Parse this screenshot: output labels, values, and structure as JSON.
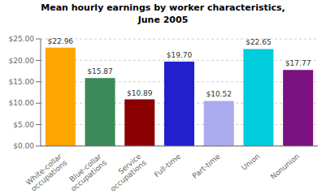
{
  "chart_data": {
    "type": "bar",
    "title": "Mean hourly earnings by worker characteristics,\nJune 2005",
    "categories": [
      "White-collar\noccupations",
      "Blue-collar\noccupations",
      "Service\noccupations",
      "Full-time",
      "Part-time",
      "Union",
      "Nonunion"
    ],
    "values": [
      22.96,
      15.87,
      10.89,
      19.7,
      10.52,
      22.65,
      17.77
    ],
    "value_labels": [
      "$22.96",
      "$15.87",
      "$10.89",
      "$19.70",
      "$10.52",
      "$22.65",
      "$17.77"
    ],
    "data_labels": true,
    "colors": [
      "#FFA500",
      "#3A8A5A",
      "#8B0000",
      "#2020CC",
      "#AAAAEE",
      "#00CCDD",
      "#7B1080"
    ],
    "ylim": [
      0,
      25
    ],
    "yticks": [
      {
        "value": 0,
        "label": "$0.00"
      },
      {
        "value": 5,
        "label": "$5.00"
      },
      {
        "value": 10,
        "label": "$10.00"
      },
      {
        "value": 15,
        "label": "$15.00"
      },
      {
        "value": 20,
        "label": "$20.00"
      },
      {
        "value": 25,
        "label": "$25.00"
      }
    ],
    "grid": true
  }
}
